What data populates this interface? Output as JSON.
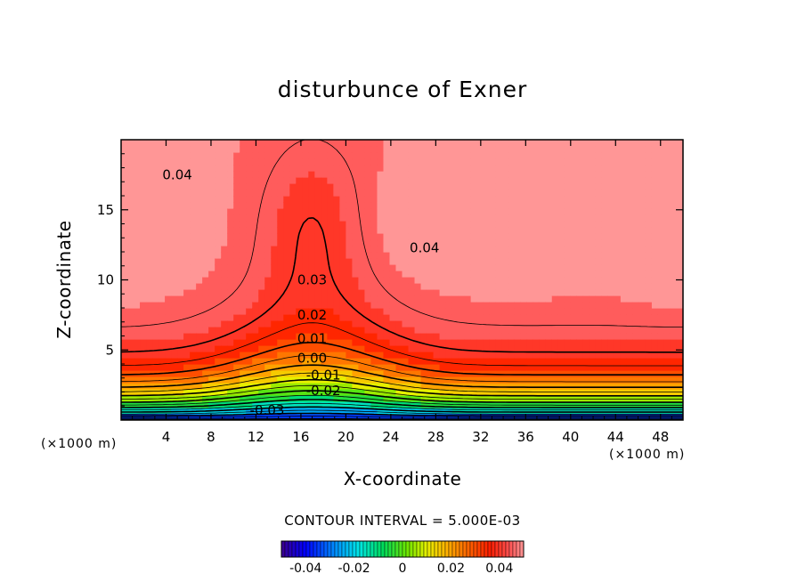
{
  "chart_data": {
    "type": "contour",
    "title": "disturbunce of Exner",
    "xlabel": "X-coordinate",
    "ylabel": "Z-coordinate",
    "x_unit": "(×1000 m)",
    "y_unit": "(×1000 m)",
    "xlim": [
      0,
      50
    ],
    "ylim": [
      0,
      20
    ],
    "x_ticks": [
      4,
      8,
      12,
      16,
      20,
      24,
      28,
      32,
      36,
      40,
      44,
      48
    ],
    "y_ticks": [
      5,
      10,
      15
    ],
    "contour_interval_text": "CONTOUR INTERVAL = 5.000E-03",
    "contour_interval": 0.005,
    "contour_labels": [
      {
        "text": "0.04",
        "x": 5,
        "z": 17.5
      },
      {
        "text": "0.04",
        "x": 27,
        "z": 12.3
      },
      {
        "text": "0.03",
        "x": 17,
        "z": 10.0
      },
      {
        "text": "0.02",
        "x": 17,
        "z": 7.5
      },
      {
        "text": "0.01",
        "x": 17,
        "z": 5.8
      },
      {
        "text": "0.00",
        "x": 17,
        "z": 4.4
      },
      {
        "text": "-0.01",
        "x": 18,
        "z": 3.2
      },
      {
        "text": "-0.02",
        "x": 18,
        "z": 2.1
      },
      {
        "text": "-0.03",
        "x": 13,
        "z": 0.7
      }
    ],
    "colorbar": {
      "range": [
        -0.05,
        0.05
      ],
      "tick_labels": [
        "-0.04",
        "-0.02",
        "0",
        "0.02",
        "0.04"
      ],
      "tick_values": [
        -0.04,
        -0.02,
        0,
        0.02,
        0.04
      ]
    },
    "field_description": "Exner pressure perturbation; negative near surface, increasing with height, maxima about 0.045 near z=14 at x=0 and x=33"
  }
}
